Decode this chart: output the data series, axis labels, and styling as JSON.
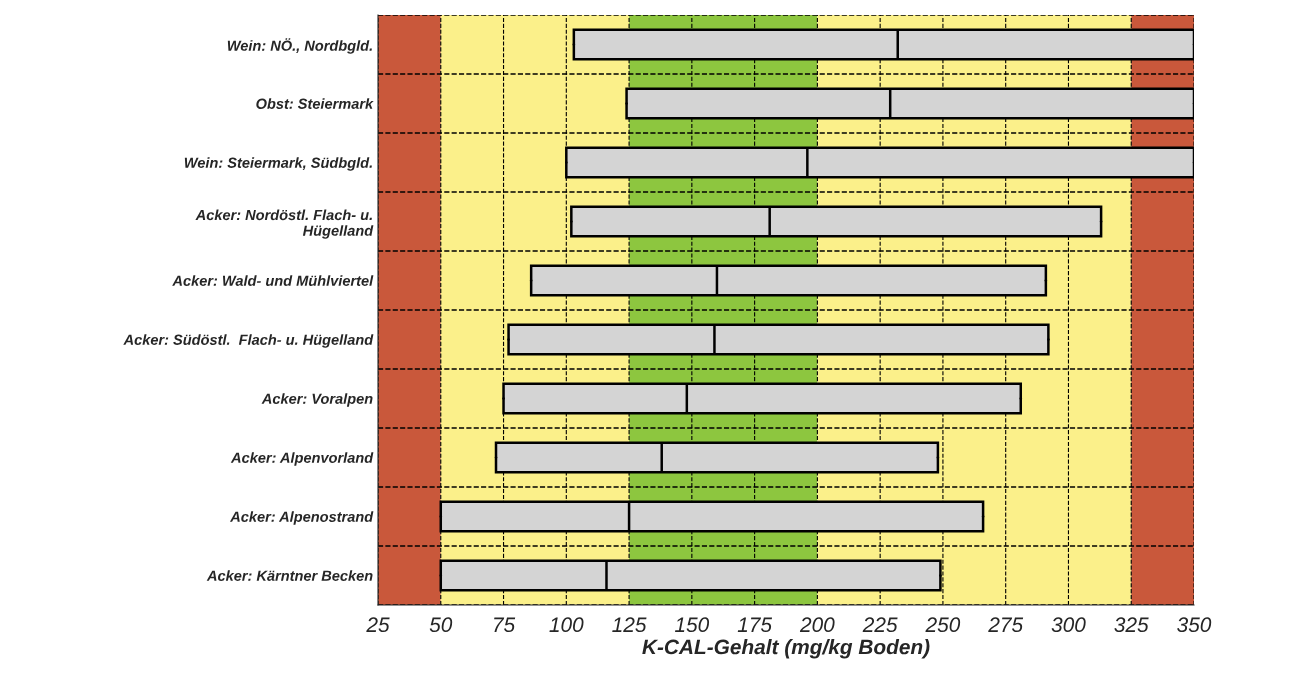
{
  "chart_data": {
    "type": "box",
    "orientation": "horizontal",
    "xlabel": "K-CAL-Gehalt (mg/kg Boden)",
    "categories": [
      "Wein: NÖ., Nordbgld.",
      "Obst: Steiermark",
      "Wein: Steiermark, Südbgld.",
      "Acker: Nordöstl. Flach- u.\nHügelland",
      "Acker: Wald- und Mühlviertel",
      "Acker: Südöstl.  Flach- u. Hügelland",
      "Acker: Voralpen",
      "Acker: Alpenvorland",
      "Acker: Alpenostrand",
      "Acker: Kärntner Becken"
    ],
    "boxes": [
      {
        "low": 103,
        "q1": 103,
        "median": 232,
        "q3": 350,
        "high": 350
      },
      {
        "low": 124,
        "q1": 124,
        "median": 229,
        "q3": 350,
        "high": 350
      },
      {
        "low": 100,
        "q1": 100,
        "median": 196,
        "q3": 350,
        "high": 350
      },
      {
        "low": 102,
        "q1": 102,
        "median": 181,
        "q3": 313,
        "high": 313
      },
      {
        "low": 86,
        "q1": 86,
        "median": 160,
        "q3": 291,
        "high": 291
      },
      {
        "low": 77,
        "q1": 77,
        "median": 159,
        "q3": 292,
        "high": 292
      },
      {
        "low": 75,
        "q1": 75,
        "median": 148,
        "q3": 281,
        "high": 281
      },
      {
        "low": 72,
        "q1": 72,
        "median": 138,
        "q3": 248,
        "high": 248
      },
      {
        "low": 50,
        "q1": 50,
        "median": 125,
        "q3": 266,
        "high": 266
      },
      {
        "low": 50,
        "q1": 50,
        "median": 116,
        "q3": 249,
        "high": 249
      }
    ],
    "color": "#d4d4d4",
    "xlim": [
      25,
      350
    ],
    "xticks": [
      25,
      50,
      75,
      100,
      125,
      150,
      175,
      200,
      225,
      250,
      275,
      300,
      325,
      350
    ],
    "bands": [
      {
        "axis": "x",
        "from": 25,
        "to": 50,
        "color": "#c9583b"
      },
      {
        "axis": "x",
        "from": 50,
        "to": 125,
        "color": "#fbf08a"
      },
      {
        "axis": "x",
        "from": 125,
        "to": 200,
        "color": "#8dc63f"
      },
      {
        "axis": "x",
        "from": 200,
        "to": 325,
        "color": "#fbf08a"
      },
      {
        "axis": "x",
        "from": 325,
        "to": 350,
        "color": "#c9583b"
      }
    ],
    "grid": true
  }
}
